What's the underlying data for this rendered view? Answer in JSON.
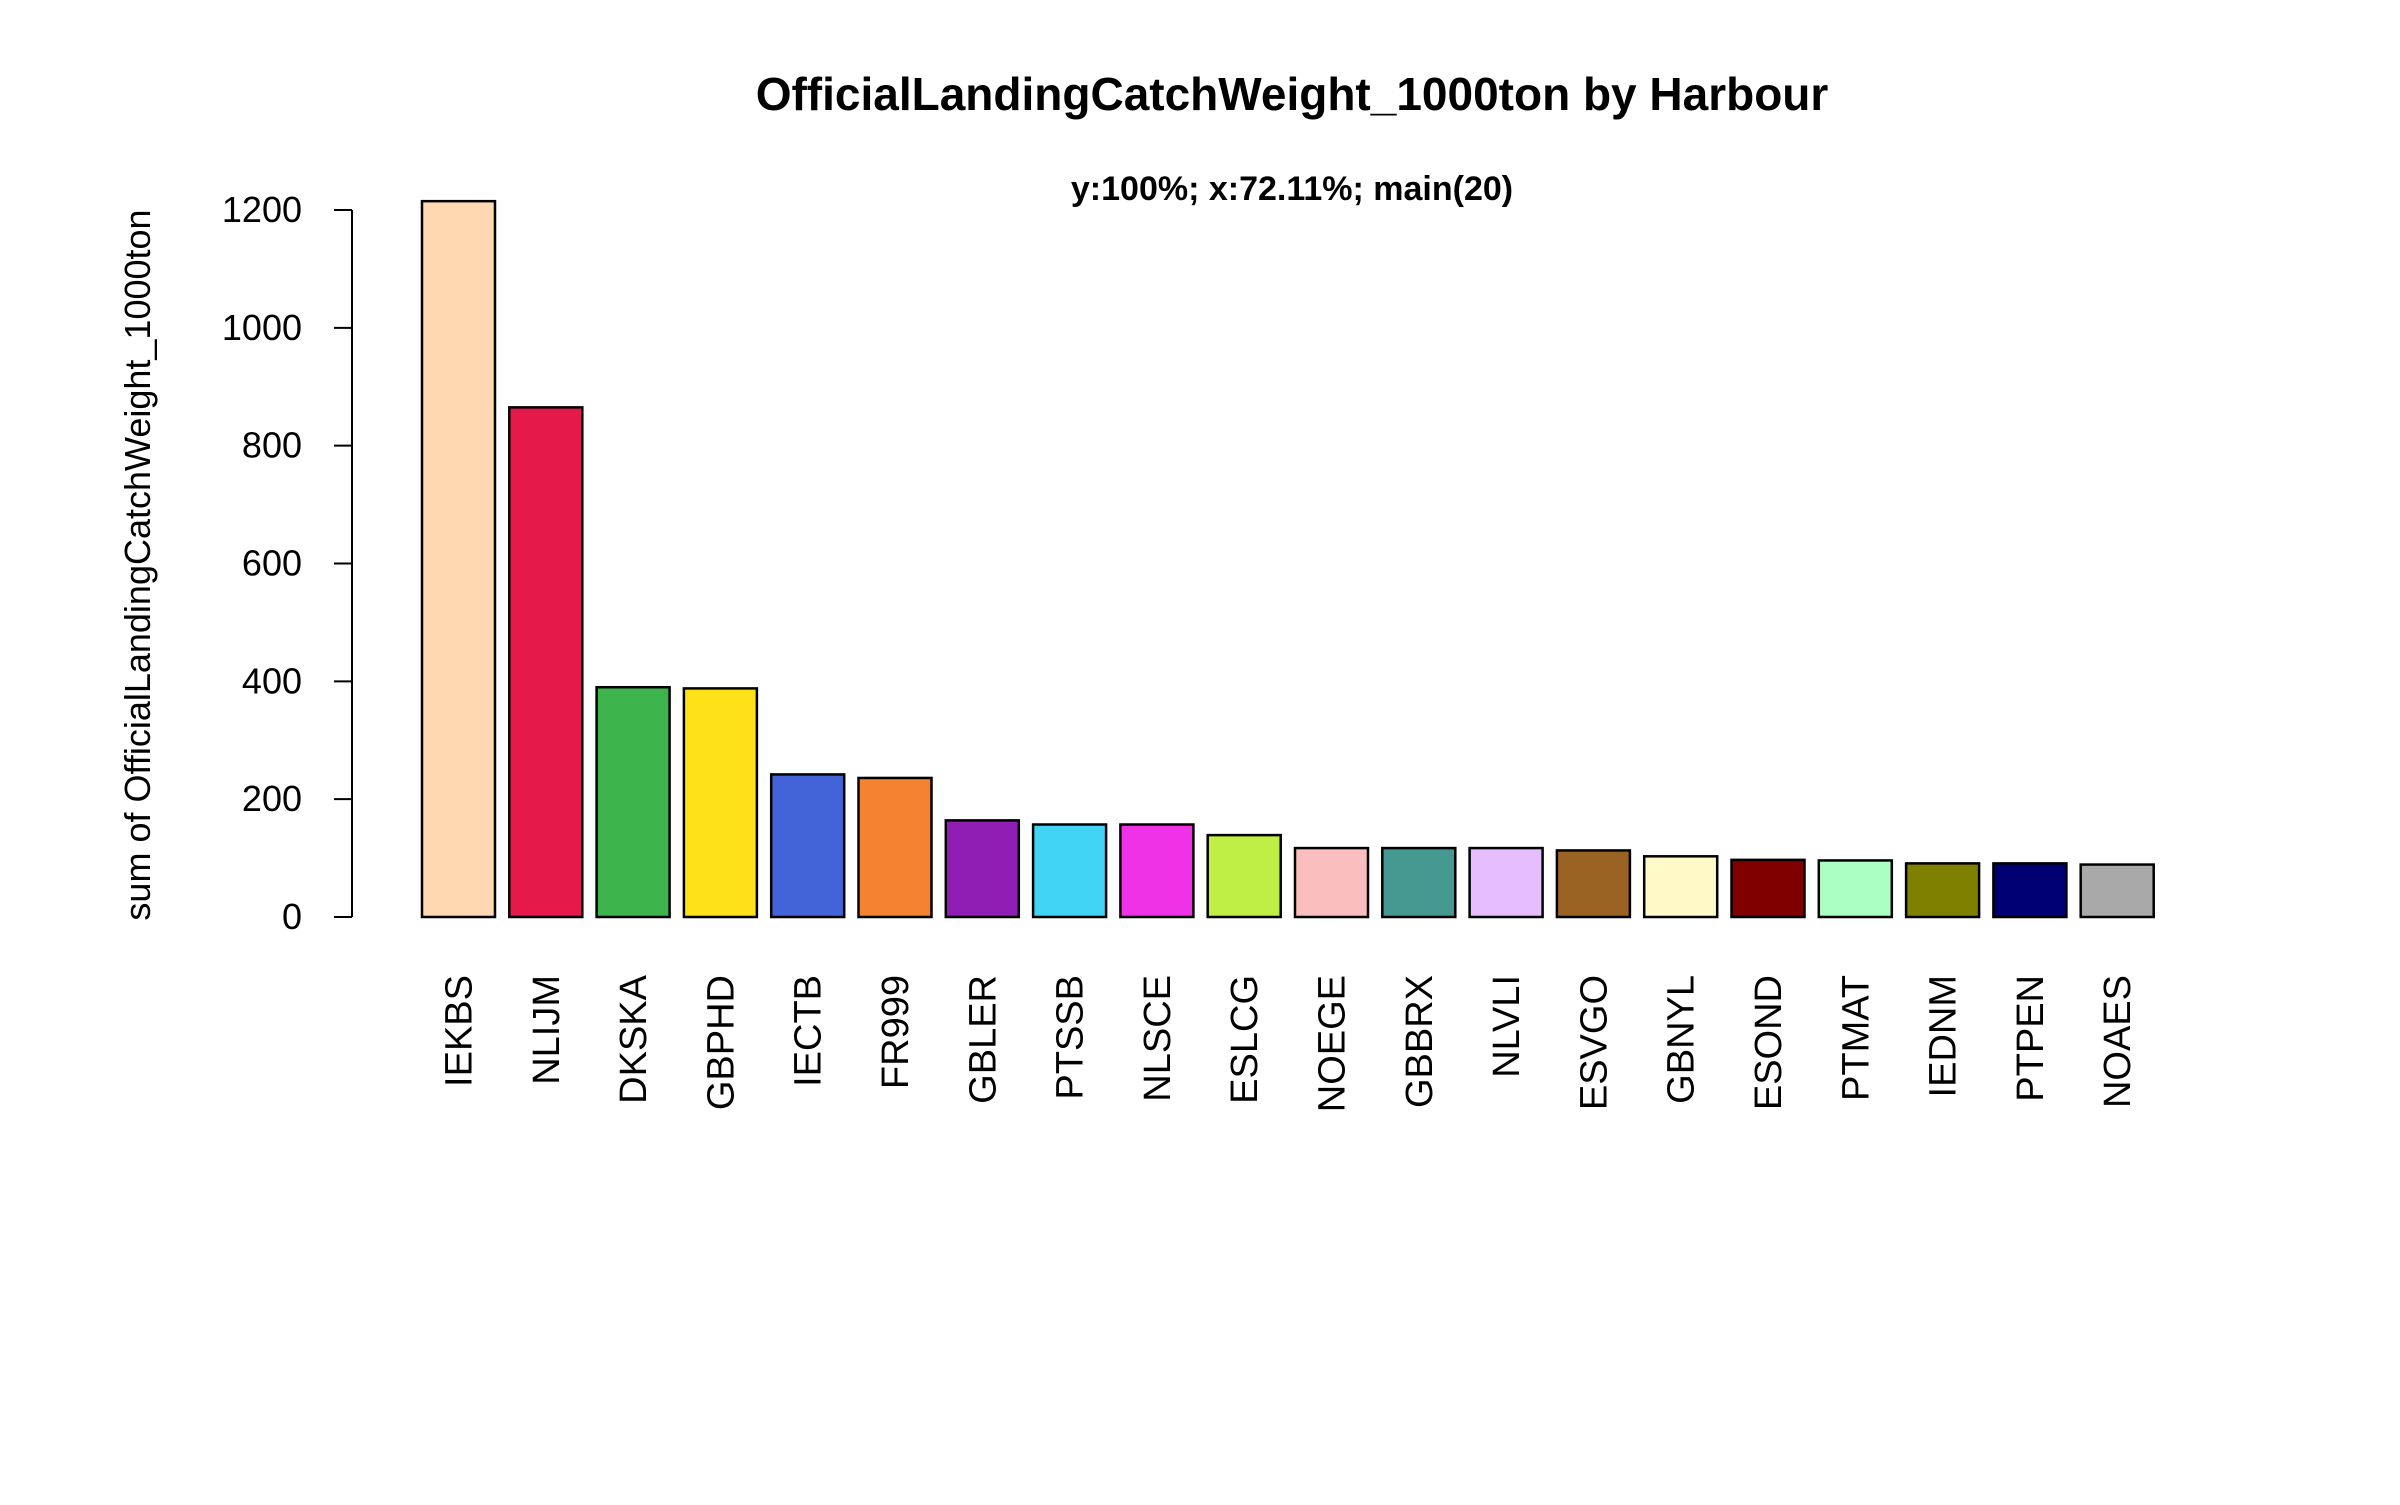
{
  "chart_data": {
    "type": "bar",
    "title": "OfficialLandingCatchWeight_1000ton by Harbour",
    "subtitle": "y:100%; x:72.11%; main(20)",
    "xlabel": "",
    "ylabel": "sum of OfficialLandingCatchWeight_1000ton",
    "ylim": [
      0,
      1200
    ],
    "yticks": [
      "0",
      "200",
      "400",
      "600",
      "800",
      "1000",
      "1200"
    ],
    "categories": [
      "IEKBS",
      "NLIJM",
      "DKSKA",
      "GBPHD",
      "IECTB",
      "FR999",
      "GBLER",
      "PTSSB",
      "NLSCE",
      "ESLCG",
      "NOEGE",
      "GBBRX",
      "NLVLI",
      "ESVGO",
      "GBNYL",
      "ESOND",
      "PTMAT",
      "IEDNM",
      "PTPEN",
      "NOAES"
    ],
    "values": [
      1215,
      865,
      390,
      388,
      242,
      236,
      164,
      157,
      157,
      139,
      117,
      117,
      117,
      113,
      103,
      97,
      96,
      91,
      91,
      89
    ],
    "colors": [
      "#FFD8B1",
      "#E6194B",
      "#3CB44B",
      "#FFE119",
      "#4363D8",
      "#F58231",
      "#911EB4",
      "#42D4F4",
      "#F032E6",
      "#BFEF45",
      "#FABEBE",
      "#469990",
      "#E6BEFF",
      "#9A6324",
      "#FFFAC8",
      "#800000",
      "#AAFFC3",
      "#808000",
      "#000075",
      "#A9A9A9"
    ],
    "grid": false,
    "legend": "none"
  }
}
